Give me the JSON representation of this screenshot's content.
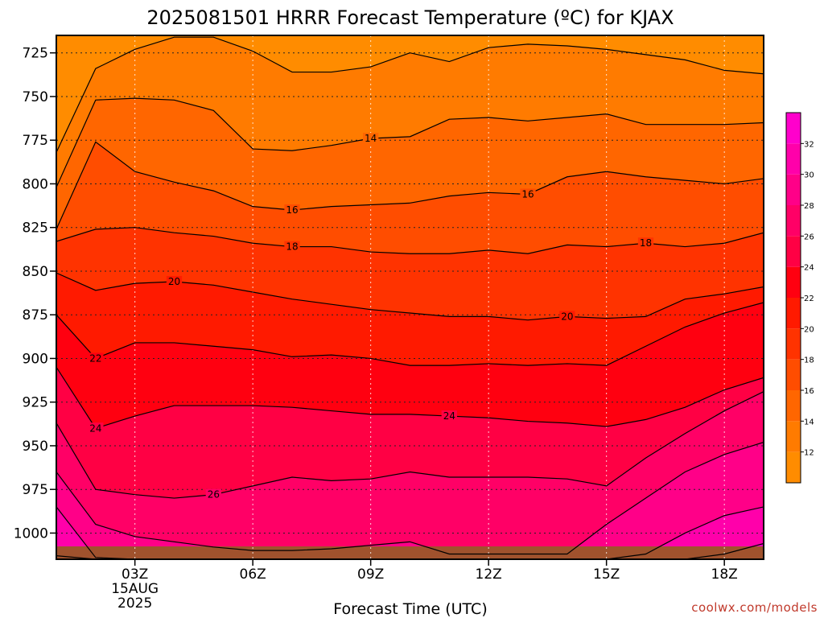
{
  "chart_data": {
    "type": "heatmap",
    "title": "2025081501 HRRR Forecast Temperature (ºC) for KJAX",
    "xlabel": "Forecast Time (UTC)",
    "ylabel": "",
    "y_axis": "pressure (hPa), inverted",
    "y_ticks": [
      725,
      750,
      775,
      800,
      825,
      850,
      875,
      900,
      925,
      950,
      975,
      1000
    ],
    "ylim": [
      1015,
      715
    ],
    "x_ticks": [
      {
        "hour": 3,
        "label": "03Z",
        "date": "15AUG",
        "year": "2025"
      },
      {
        "hour": 6,
        "label": "06Z"
      },
      {
        "hour": 9,
        "label": "09Z"
      },
      {
        "hour": 12,
        "label": "12Z"
      },
      {
        "hour": 15,
        "label": "15Z"
      },
      {
        "hour": 18,
        "label": "18Z"
      }
    ],
    "xlim": [
      1,
      19
    ],
    "grid": true,
    "colorbar": {
      "position": "right",
      "ticks": [
        12,
        14,
        16,
        18,
        20,
        22,
        24,
        26,
        28,
        30,
        32
      ],
      "range": [
        10,
        34
      ],
      "colors": [
        "#ff8c00",
        "#ff7b00",
        "#ff6600",
        "#ff4d00",
        "#ff3300",
        "#ff1a00",
        "#ff0010",
        "#ff0044",
        "#ff0066",
        "#ff0088",
        "#ff00aa",
        "#ff00cc",
        "#ff00ff"
      ]
    },
    "hours": [
      1,
      2,
      3,
      4,
      5,
      6,
      7,
      8,
      9,
      10,
      11,
      12,
      13,
      14,
      15,
      16,
      17,
      18,
      19
    ],
    "contours": [
      {
        "level": 12,
        "label": "",
        "p": [
          782,
          734,
          723,
          716,
          716,
          724,
          736,
          736,
          733,
          725,
          730,
          722,
          720,
          721,
          723,
          726,
          729,
          735,
          737
        ]
      },
      {
        "level": 14,
        "label": "14",
        "label_hour": 9,
        "p": [
          802,
          752,
          751,
          752,
          758,
          780,
          781,
          778,
          774,
          773,
          763,
          762,
          764,
          762,
          760,
          766,
          766,
          766,
          765
        ]
      },
      {
        "level": 16,
        "label": "16",
        "label_hour": 7,
        "p": [
          826,
          776,
          793,
          799,
          804,
          813,
          815,
          813,
          812,
          811,
          807,
          805,
          806,
          796,
          793,
          796,
          798,
          800,
          797
        ]
      },
      {
        "level": 16,
        "label": "16",
        "label_hour": 13,
        "p": []
      },
      {
        "level": 18,
        "label": "18",
        "label_hour": 7,
        "p": [
          833,
          826,
          825,
          828,
          830,
          834,
          836,
          836,
          839,
          840,
          840,
          838,
          840,
          835,
          836,
          834,
          836,
          834,
          828
        ]
      },
      {
        "level": 18,
        "label": "18",
        "label_hour": 16,
        "p": []
      },
      {
        "level": 20,
        "label": "20",
        "label_hour": 4,
        "p": [
          851,
          861,
          857,
          856,
          858,
          862,
          866,
          869,
          872,
          874,
          876,
          876,
          878,
          876,
          877,
          876,
          866,
          863,
          859
        ]
      },
      {
        "level": 20,
        "label": "20",
        "label_hour": 14,
        "p": []
      },
      {
        "level": 22,
        "label": "22",
        "label_hour": 2,
        "p": [
          875,
          900,
          891,
          891,
          893,
          895,
          899,
          898,
          900,
          904,
          904,
          903,
          904,
          903,
          904,
          893,
          882,
          874,
          868
        ]
      },
      {
        "level": 24,
        "label": "24",
        "label_hour": 2,
        "p": [
          905,
          940,
          933,
          927,
          927,
          927,
          928,
          930,
          932,
          932,
          933,
          934,
          936,
          937,
          939,
          935,
          928,
          918,
          911
        ]
      },
      {
        "level": 24,
        "label": "24",
        "label_hour": 11,
        "p": []
      },
      {
        "level": 26,
        "label": "26",
        "label_hour": 5,
        "p": [
          937,
          975,
          978,
          980,
          978,
          973,
          968,
          970,
          969,
          965,
          968,
          968,
          968,
          969,
          973,
          957,
          943,
          930,
          919
        ]
      },
      {
        "level": 28,
        "label": "",
        "p": [
          965,
          995,
          1002,
          1005,
          1008,
          1010,
          1010,
          1009,
          1007,
          1005,
          1012,
          1012,
          1012,
          1012,
          995,
          980,
          965,
          955,
          948
        ]
      },
      {
        "level": 30,
        "label": "",
        "p": [
          985,
          1014,
          1015,
          1015,
          1015,
          1015,
          1015,
          1015,
          1015,
          1015,
          1015,
          1015,
          1015,
          1015,
          1015,
          1012,
          1000,
          990,
          985
        ]
      },
      {
        "level": 32,
        "label": "",
        "p": [
          1013,
          1015,
          1015,
          1015,
          1015,
          1015,
          1015,
          1015,
          1015,
          1015,
          1015,
          1015,
          1015,
          1015,
          1015,
          1015,
          1015,
          1012,
          1006
        ]
      }
    ]
  },
  "credit": "coolwx.com/models"
}
